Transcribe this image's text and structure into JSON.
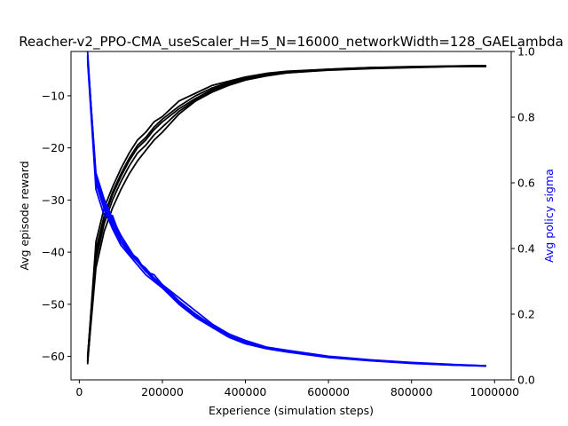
{
  "chart_data": {
    "type": "line",
    "title": "Reacher-v2_PPO-CMA_useScaler_H=5_N=16000_networkWidth=128_GAELambda",
    "xlabel": "Experience (simulation steps)",
    "ylabel": "Avg episode reward",
    "y2label": "Avg policy sigma",
    "xlim": [
      -20000,
      1040000
    ],
    "ylim": [
      -64.5,
      -1.5
    ],
    "y2lim": [
      0.0,
      1.0
    ],
    "xticks": [
      0,
      200000,
      400000,
      600000,
      800000,
      1000000
    ],
    "yticks": [
      -60,
      -50,
      -40,
      -30,
      -20,
      -10
    ],
    "y2ticks": [
      0.0,
      0.2,
      0.4,
      0.6,
      0.8,
      1.0
    ],
    "colors": {
      "reward": "#000000",
      "sigma": "#0000ff",
      "y2label": "#0000ff"
    },
    "x": [
      20000,
      40000,
      60000,
      80000,
      100000,
      120000,
      140000,
      160000,
      180000,
      200000,
      240000,
      280000,
      320000,
      360000,
      400000,
      450000,
      500000,
      600000,
      700000,
      800000,
      900000,
      980000
    ],
    "series": [
      {
        "axis": "left",
        "values": [
          -61.5,
          -40.5,
          -33.5,
          -29.0,
          -25.5,
          -22.5,
          -20.0,
          -18.5,
          -16.5,
          -15.0,
          -12.5,
          -10.5,
          -8.8,
          -7.6,
          -6.8,
          -6.0,
          -5.5,
          -5.0,
          -4.7,
          -4.5,
          -4.4,
          -4.3
        ]
      },
      {
        "axis": "left",
        "values": [
          -60.5,
          -38.0,
          -31.5,
          -27.5,
          -24.0,
          -21.0,
          -18.5,
          -17.0,
          -15.0,
          -14.0,
          -11.0,
          -9.5,
          -8.0,
          -7.2,
          -6.4,
          -5.7,
          -5.3,
          -4.9,
          -4.6,
          -4.4,
          -4.3,
          -4.2
        ]
      },
      {
        "axis": "left",
        "values": [
          -61.0,
          -43.0,
          -36.0,
          -31.5,
          -28.0,
          -25.0,
          -22.5,
          -20.5,
          -18.5,
          -17.0,
          -13.5,
          -11.0,
          -9.3,
          -8.0,
          -7.0,
          -6.2,
          -5.6,
          -5.1,
          -4.8,
          -4.6,
          -4.4,
          -4.4
        ]
      },
      {
        "axis": "left",
        "values": [
          -60.0,
          -39.5,
          -33.0,
          -28.5,
          -25.0,
          -22.0,
          -19.5,
          -18.0,
          -16.0,
          -14.5,
          -12.0,
          -10.0,
          -8.5,
          -7.4,
          -6.6,
          -5.9,
          -5.4,
          -4.9,
          -4.6,
          -4.5,
          -4.3,
          -4.2
        ]
      },
      {
        "axis": "left",
        "values": [
          -61.0,
          -41.5,
          -34.5,
          -30.0,
          -26.5,
          -23.5,
          -21.0,
          -19.5,
          -17.5,
          -16.0,
          -13.0,
          -10.8,
          -9.0,
          -7.8,
          -6.9,
          -6.1,
          -5.6,
          -5.0,
          -4.7,
          -4.5,
          -4.4,
          -4.3
        ]
      },
      {
        "axis": "right",
        "values": [
          1.0,
          0.6,
          0.52,
          0.46,
          0.41,
          0.38,
          0.35,
          0.32,
          0.3,
          0.28,
          0.23,
          0.19,
          0.16,
          0.13,
          0.11,
          0.095,
          0.085,
          0.068,
          0.058,
          0.05,
          0.045,
          0.042
        ]
      },
      {
        "axis": "right",
        "values": [
          0.98,
          0.63,
          0.55,
          0.49,
          0.44,
          0.4,
          0.36,
          0.34,
          0.31,
          0.29,
          0.24,
          0.2,
          0.165,
          0.135,
          0.115,
          0.098,
          0.088,
          0.07,
          0.06,
          0.052,
          0.046,
          0.043
        ]
      },
      {
        "axis": "right",
        "values": [
          0.97,
          0.58,
          0.5,
          0.5,
          0.43,
          0.39,
          0.37,
          0.33,
          0.32,
          0.29,
          0.25,
          0.21,
          0.17,
          0.14,
          0.12,
          0.1,
          0.09,
          0.072,
          0.061,
          0.053,
          0.047,
          0.043
        ]
      },
      {
        "axis": "right",
        "values": [
          0.99,
          0.61,
          0.53,
          0.47,
          0.42,
          0.385,
          0.36,
          0.33,
          0.305,
          0.28,
          0.235,
          0.195,
          0.16,
          0.13,
          0.11,
          0.096,
          0.086,
          0.069,
          0.059,
          0.051,
          0.045,
          0.042
        ]
      },
      {
        "axis": "right",
        "values": [
          0.985,
          0.62,
          0.54,
          0.48,
          0.43,
          0.395,
          0.365,
          0.335,
          0.31,
          0.285,
          0.24,
          0.2,
          0.165,
          0.135,
          0.115,
          0.097,
          0.087,
          0.07,
          0.06,
          0.052,
          0.046,
          0.043
        ]
      }
    ]
  }
}
